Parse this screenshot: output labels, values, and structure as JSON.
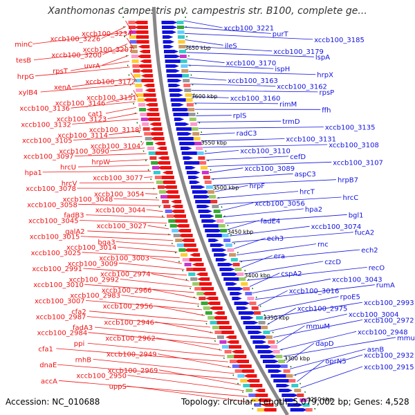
{
  "title": "Xanthomonas campestris pv. campestris str. B100, complete ge...",
  "footer": {
    "accession": "Accession: NC_010688",
    "topology": "Topology: circular; Length: 5,079,002 bp; Genes: 4,528"
  },
  "colors": {
    "left_strand": "#ee1111",
    "right_strand": "#1111dd",
    "backbone": "#888888",
    "tick": "#117711"
  },
  "kbp_marks": [
    "3650 kbp",
    "3600 kbp",
    "3550 kbp",
    "3500 kbp",
    "3450 kbp",
    "3400 kbp",
    "3350 kbp",
    "3300 kbp",
    "3250 kbp"
  ],
  "left_labels": [
    "xccb100_3234",
    "xccb100_3226",
    "minC",
    "xccb100_3207",
    "xccb100_3200",
    "tesB",
    "uvrA",
    "rpsT",
    "hrpG",
    "xccb100_3172",
    "xenA",
    "xylB4",
    "xccb100_3151",
    "xccb100_3146",
    "xccb100_3136",
    "cat1",
    "xccb100_3123",
    "xccb100_3132",
    "xccb100_3118",
    "xccb100_3114",
    "xccb100_3105",
    "xccb100_3104",
    "xccb100_3090",
    "xccb100_3097",
    "hrpW",
    "hrcU",
    "hpa1",
    "xccb100_3077",
    "hrcV",
    "xccb100_3078",
    "xccb100_3054",
    "xccb100_3048",
    "xccb100_3058",
    "xccb100_3044",
    "fadB3",
    "xccb100_3045",
    "xccb100_3027",
    "galA2",
    "xccb100_3015",
    "bga3",
    "xccb100_3014",
    "xccb100_3025",
    "xccb100_3003",
    "xccb100_3009",
    "xccb100_2991",
    "xccb100_2974",
    "xccb100_2992",
    "xccb100_3010",
    "xccb100_2966",
    "xccb100_2983",
    "xccb100_3007",
    "xccb100_2956",
    "cfa2",
    "xccb100_2987",
    "xccb100_2946",
    "fadA3",
    "xccb100_2984",
    "xccb100_2962",
    "ppi",
    "cfa1",
    "xccb100_2949",
    "rnhB",
    "dnaE",
    "xccb100_2969",
    "xccb100_2950",
    "accA",
    "uppS"
  ],
  "right_labels": [
    "xccb100_3221",
    "purT",
    "xccb100_3185",
    "ileS",
    "xccb100_3179",
    "lspA",
    "xccb100_3170",
    "ispH",
    "hrpX",
    "xccb100_3163",
    "xccb100_3162",
    "rpsP",
    "xccb100_3160",
    "rimM",
    "ffh",
    "rplS",
    "trmD",
    "xccb100_3135",
    "radC3",
    "xccb100_3131",
    "xccb100_3108",
    "xccb100_3110",
    "cefD",
    "xccb100_3107",
    "xccb100_3089",
    "aspC3",
    "hrpB7",
    "hrpF",
    "hrcT",
    "hrcC",
    "xccb100_3056",
    "hpa2",
    "bgl1",
    "fadE4",
    "xccb100_3074",
    "fucA2",
    "ech3",
    "rnc",
    "ech2",
    "era",
    "czcD",
    "recO",
    "cspA2",
    "xccb100_3043",
    "rumA",
    "xccb100_3016",
    "rpoE5",
    "xccb100_2993",
    "xccb100_2975",
    "xccb100_3004",
    "xccb100_2972",
    "mmuM",
    "xccb100_2948",
    "mmuP",
    "dapD",
    "asnB",
    "xccb100_2932",
    "oprN5",
    "xccb100_2915"
  ]
}
